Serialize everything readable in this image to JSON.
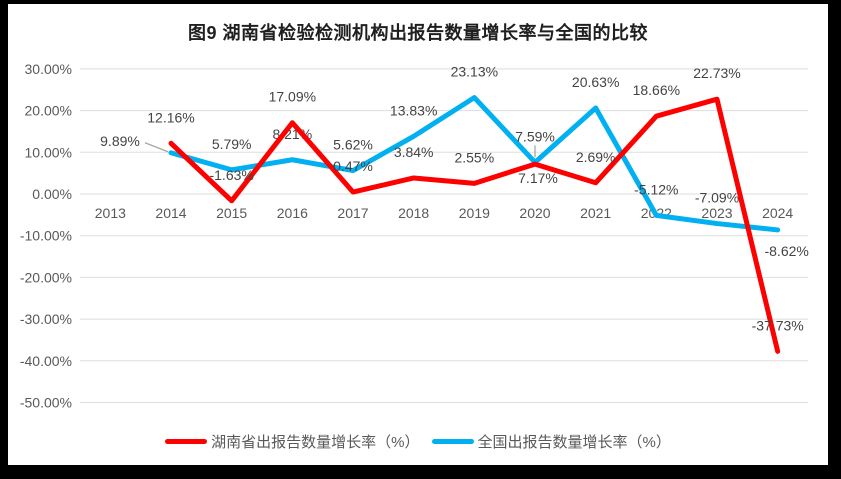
{
  "title": "图9 湖南省检验检测机构出报告数量增长率与全国的比较",
  "theme": {
    "frame_background": "#000000",
    "canvas_background": "#FFFFFF",
    "gridline_color": "#DDDDDD",
    "axis_text_color": "#595959",
    "data_label_color": "#444444",
    "leader_line_color": "#A6A6A6",
    "title_color": "#1F1F1F"
  },
  "chart_data": {
    "type": "line",
    "title": "图9 湖南省检验检测机构出报告数量增长率与全国的比较",
    "categories": [
      "2013",
      "2014",
      "2015",
      "2016",
      "2017",
      "2018",
      "2019",
      "2020",
      "2021",
      "2022",
      "2023",
      "2024"
    ],
    "y_axis": {
      "min": -50,
      "max": 30,
      "step": 10,
      "format": "percent",
      "tick_labels": [
        "30.00%",
        "20.00%",
        "10.00%",
        "0.00%",
        "-10.00%",
        "-20.00%",
        "-30.00%",
        "-40.00%",
        "-50.00%"
      ]
    },
    "grid": true,
    "legend_position": "bottom",
    "series": [
      {
        "id": "hunan",
        "name": "湖南省出报告数量增长率（%）",
        "color": "#FF0000",
        "points": [
          {
            "x": "2014",
            "y": 12.16,
            "label": "12.16%",
            "label_pos": "above"
          },
          {
            "x": "2015",
            "y": -1.63,
            "label": "-1.63%",
            "label_pos": "above"
          },
          {
            "x": "2016",
            "y": 17.09,
            "label": "17.09%",
            "label_pos": "above"
          },
          {
            "x": "2017",
            "y": 0.47,
            "label": "0.47%",
            "label_pos": "above"
          },
          {
            "x": "2018",
            "y": 3.84,
            "label": "3.84%",
            "label_pos": "above"
          },
          {
            "x": "2019",
            "y": 2.55,
            "label": "2.55%",
            "label_pos": "above"
          },
          {
            "x": "2020",
            "y": 7.17,
            "label": "7.17%",
            "label_pos": "below"
          },
          {
            "x": "2021",
            "y": 2.69,
            "label": "2.69%",
            "label_pos": "above"
          },
          {
            "x": "2022",
            "y": 18.66,
            "label": "18.66%",
            "label_pos": "above"
          },
          {
            "x": "2023",
            "y": 22.73,
            "label": "22.73%",
            "label_pos": "above"
          },
          {
            "x": "2024",
            "y": -37.73,
            "label": "-37.73%",
            "label_pos": "above"
          }
        ]
      },
      {
        "id": "national",
        "name": "全国出报告数量增长率（%）",
        "color": "#00B0F0",
        "points": [
          {
            "x": "2014",
            "y": 9.89,
            "label": "9.89%",
            "label_pos": "left-leader"
          },
          {
            "x": "2015",
            "y": 5.79,
            "label": "5.79%",
            "label_pos": "above"
          },
          {
            "x": "2016",
            "y": 8.21,
            "label": "8.21%",
            "label_pos": "above"
          },
          {
            "x": "2017",
            "y": 5.62,
            "label": "5.62%",
            "label_pos": "above"
          },
          {
            "x": "2018",
            "y": 13.83,
            "label": "13.83%",
            "label_pos": "above"
          },
          {
            "x": "2019",
            "y": 23.13,
            "label": "23.13%",
            "label_pos": "above"
          },
          {
            "x": "2020",
            "y": 7.59,
            "label": "7.59%",
            "label_pos": "above-leader"
          },
          {
            "x": "2021",
            "y": 20.63,
            "label": "20.63%",
            "label_pos": "above"
          },
          {
            "x": "2022",
            "y": -5.12,
            "label": "-5.12%",
            "label_pos": "above"
          },
          {
            "x": "2023",
            "y": -7.09,
            "label": "-7.09%",
            "label_pos": "above"
          },
          {
            "x": "2024",
            "y": -8.62,
            "label": "-8.62%",
            "label_pos": "below-right"
          }
        ]
      }
    ]
  }
}
